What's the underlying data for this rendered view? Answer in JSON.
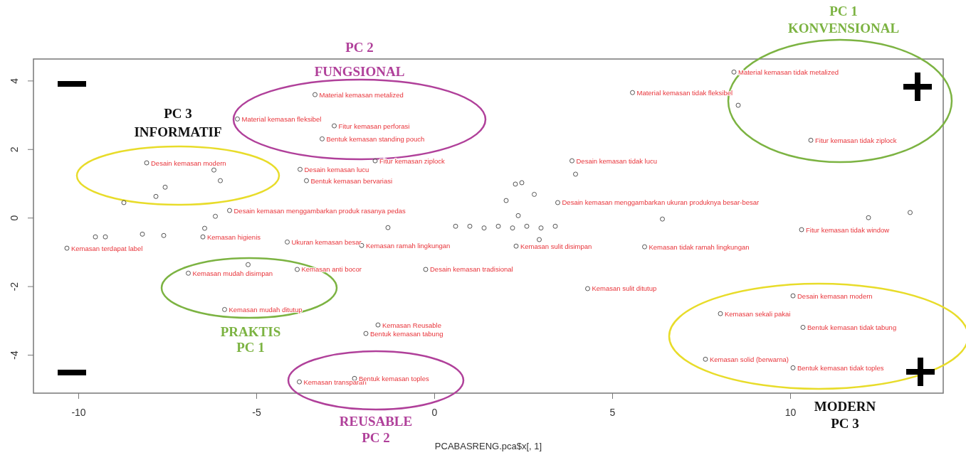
{
  "chart_data": {
    "type": "scatter",
    "xlabel": "PCABASRENG.pca$x[, 1]",
    "xlim": [
      -11.26,
      14.3
    ],
    "ylim": [
      -5.12,
      4.63
    ],
    "xticks": [
      -10,
      -5,
      0,
      5,
      10
    ],
    "yticks": [
      -4,
      -2,
      0,
      2,
      4
    ],
    "grid": false,
    "marker": "circle",
    "annotations": [
      "PC 1",
      "KONVENSIONAL",
      "PC 2",
      "FUNGSIONAL",
      "PC 3",
      "INFORMATIF",
      "PRAKTIS",
      "PC 1",
      "REUSABLE",
      "PC 2",
      "MODERN",
      "PC 3"
    ],
    "series": [
      {
        "color": "#555555",
        "x": [
          -3.35,
          -5.53,
          -2.81,
          -3.15,
          -1.66,
          -8.08,
          -6.19,
          -3.77,
          -6.01,
          -3.59,
          -7.56,
          -7.82,
          -8.72,
          -5.75,
          -6.15,
          -6.45,
          -9.52,
          -9.24,
          -8.2,
          -7.6,
          -6.5,
          -10.32,
          -4.13,
          -2.04,
          -1.3,
          0.6,
          1.0,
          1.4,
          1.8,
          2.2,
          2.6,
          3.0,
          3.4,
          3.87,
          3.97,
          2.28,
          2.46,
          2.02,
          3.47,
          2.81,
          2.36,
          2.3,
          2.95,
          5.91,
          6.41,
          5.57,
          8.42,
          8.54,
          10.58,
          12.2,
          13.37,
          10.32,
          4.31,
          -0.24,
          -3.85,
          -5.23,
          -6.91,
          -5.89,
          -1.58,
          -1.92,
          -3.79,
          -2.24,
          10.08,
          8.04,
          10.36,
          7.62,
          10.08
        ],
        "values": [
          3.59,
          2.88,
          2.68,
          2.3,
          1.66,
          1.6,
          1.39,
          1.41,
          1.08,
          1.08,
          0.89,
          0.62,
          0.44,
          0.21,
          0.04,
          -0.31,
          -0.56,
          -0.56,
          -0.48,
          -0.52,
          -0.56,
          -0.89,
          -0.71,
          -0.81,
          -0.29,
          -0.25,
          -0.25,
          -0.3,
          -0.25,
          -0.3,
          -0.25,
          -0.3,
          -0.25,
          1.66,
          1.27,
          0.98,
          1.02,
          0.5,
          0.44,
          0.68,
          0.06,
          -0.83,
          -0.64,
          -0.85,
          -0.04,
          3.65,
          4.25,
          3.28,
          2.26,
          0.0,
          0.15,
          -0.35,
          -2.07,
          -1.51,
          -1.51,
          -1.37,
          -1.62,
          -2.68,
          -3.13,
          -3.38,
          -4.79,
          -4.69,
          -2.28,
          -2.8,
          -3.2,
          -4.13,
          -4.38
        ],
        "value_labels": [
          "Material kemasan metalized",
          "Material kemasan fleksibel",
          "Fitur kemasan perforasi",
          "Bentuk kemasan standing pouch",
          "Fitur kemasan ziplock",
          "Desain kemasan modern",
          null,
          "Desain kemasan lucu",
          null,
          "Bentuk kemasan bervariasi",
          null,
          null,
          null,
          "Desain kemasan menggambarkan produk rasanya pedas",
          null,
          null,
          null,
          null,
          null,
          null,
          "Kemasan higienis",
          "Kemasan terdapat label",
          "Ukuran kemasan besar",
          "Kemasan ramah lingkungan",
          null,
          null,
          null,
          null,
          null,
          null,
          null,
          null,
          null,
          "Desain kemasan tidak lucu",
          null,
          null,
          null,
          null,
          "Desain kemasan menggambarkan ukuran produknya besar-besar",
          null,
          null,
          "Kemasan sulit disimpan",
          null,
          "Kemasan tidak ramah lingkungan",
          null,
          "Material kemasan tidak fleksibel",
          "Material kemasan tidak metalized",
          null,
          "Fitur kemasan tidak ziplock",
          null,
          null,
          "Fitur kemasan tidak window",
          "Kemasan sulit ditutup",
          "Desain kemasan tradisional",
          "Kemasan anti bocor",
          null,
          "Kemasan mudah disimpan",
          "Kemasan mudah ditutup",
          "Kemasan Reusable",
          "Bentuk kemasan tabung",
          "Kemasan transparan",
          "Bentuk kemasan toples",
          "Desain kemasan modern",
          "Kemasan sekali pakai",
          "Bentuk kemasan tidak tabung",
          "Kemasan solid (berwarna)",
          "Bentuk kemasan tidak toples"
        ]
      }
    ]
  }
}
